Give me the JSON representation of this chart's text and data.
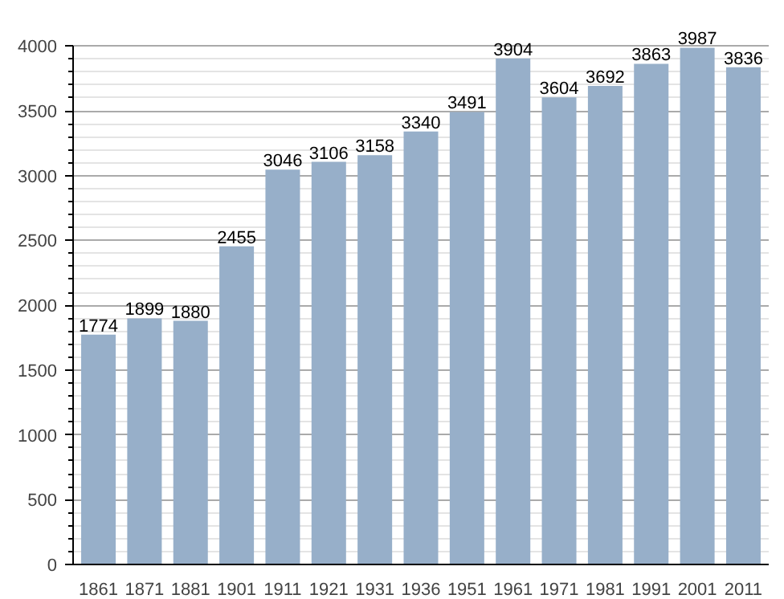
{
  "chart_data": {
    "type": "bar",
    "categories": [
      "1861",
      "1871",
      "1881",
      "1901",
      "1911",
      "1921",
      "1931",
      "1936",
      "1951",
      "1961",
      "1971",
      "1981",
      "1991",
      "2001",
      "2011"
    ],
    "values": [
      1774,
      1899,
      1880,
      2455,
      3046,
      3106,
      3158,
      3340,
      3491,
      3904,
      3604,
      3692,
      3863,
      3987,
      3836
    ],
    "color": "#97afc9",
    "ylim": [
      0,
      4000
    ],
    "yticks": [
      0,
      500,
      1000,
      1500,
      2000,
      2500,
      3000,
      3500,
      4000
    ],
    "grid": "y",
    "data_labels": true
  }
}
